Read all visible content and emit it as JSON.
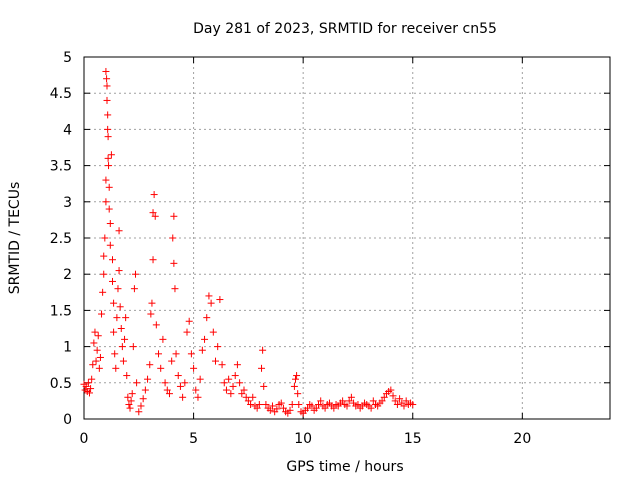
{
  "chart_data": {
    "type": "scatter",
    "title": "Day 281 of 2023, SRMTID for receiver cn55",
    "xlabel": "GPS time / hours",
    "ylabel": "SRMTID / TECUs",
    "xlim": [
      0,
      24
    ],
    "ylim": [
      0,
      5
    ],
    "x_ticks": [
      0,
      5,
      10,
      15,
      20
    ],
    "x_tick_labels": [
      "0",
      "5",
      "10",
      "15",
      "20"
    ],
    "y_ticks": [
      0,
      0.5,
      1,
      1.5,
      2,
      2.5,
      3,
      3.5,
      4,
      4.5,
      5
    ],
    "y_tick_labels": [
      "0",
      "0.5",
      "1",
      "1.5",
      "2",
      "2.5",
      "3",
      "3.5",
      "4",
      "4.5",
      "5"
    ],
    "grid": true,
    "marker": "+",
    "series": [
      {
        "name": "SRMTID",
        "color": "#ff0000",
        "points": [
          [
            0.0,
            0.48
          ],
          [
            0.05,
            0.4
          ],
          [
            0.1,
            0.45
          ],
          [
            0.15,
            0.38
          ],
          [
            0.2,
            0.5
          ],
          [
            0.25,
            0.36
          ],
          [
            0.3,
            0.42
          ],
          [
            0.35,
            0.55
          ],
          [
            0.4,
            0.75
          ],
          [
            0.45,
            1.05
          ],
          [
            0.5,
            1.2
          ],
          [
            0.55,
            0.8
          ],
          [
            0.6,
            0.95
          ],
          [
            0.65,
            1.15
          ],
          [
            0.7,
            0.7
          ],
          [
            0.75,
            0.85
          ],
          [
            0.8,
            1.45
          ],
          [
            0.85,
            1.75
          ],
          [
            0.9,
            2.0
          ],
          [
            0.9,
            2.25
          ],
          [
            0.95,
            2.5
          ],
          [
            1.0,
            3.0
          ],
          [
            1.0,
            3.3
          ],
          [
            1.0,
            4.8
          ],
          [
            1.03,
            4.7
          ],
          [
            1.05,
            4.6
          ],
          [
            1.05,
            4.4
          ],
          [
            1.08,
            4.2
          ],
          [
            1.08,
            4.0
          ],
          [
            1.1,
            3.9
          ],
          [
            1.1,
            3.6
          ],
          [
            1.12,
            3.5
          ],
          [
            1.15,
            3.2
          ],
          [
            1.15,
            2.9
          ],
          [
            1.2,
            2.7
          ],
          [
            1.2,
            2.4
          ],
          [
            1.25,
            3.65
          ],
          [
            1.3,
            2.2
          ],
          [
            1.3,
            1.9
          ],
          [
            1.35,
            1.6
          ],
          [
            1.35,
            1.2
          ],
          [
            1.4,
            0.9
          ],
          [
            1.45,
            0.7
          ],
          [
            1.5,
            1.4
          ],
          [
            1.55,
            1.8
          ],
          [
            1.6,
            2.05
          ],
          [
            1.6,
            2.6
          ],
          [
            1.65,
            1.55
          ],
          [
            1.7,
            1.25
          ],
          [
            1.75,
            1.0
          ],
          [
            1.8,
            0.8
          ],
          [
            1.85,
            1.1
          ],
          [
            1.9,
            1.4
          ],
          [
            1.95,
            0.6
          ],
          [
            2.0,
            0.3
          ],
          [
            2.05,
            0.2
          ],
          [
            2.1,
            0.15
          ],
          [
            2.15,
            0.25
          ],
          [
            2.2,
            0.35
          ],
          [
            2.25,
            1.0
          ],
          [
            2.3,
            1.8
          ],
          [
            2.35,
            2.0
          ],
          [
            2.4,
            0.5
          ],
          [
            2.5,
            0.1
          ],
          [
            2.6,
            0.18
          ],
          [
            2.7,
            0.28
          ],
          [
            2.8,
            0.4
          ],
          [
            2.9,
            0.55
          ],
          [
            3.0,
            0.75
          ],
          [
            3.05,
            1.45
          ],
          [
            3.1,
            1.6
          ],
          [
            3.15,
            2.2
          ],
          [
            3.15,
            2.85
          ],
          [
            3.2,
            3.1
          ],
          [
            3.25,
            2.8
          ],
          [
            3.3,
            1.3
          ],
          [
            3.4,
            0.9
          ],
          [
            3.5,
            0.7
          ],
          [
            3.6,
            1.1
          ],
          [
            3.7,
            0.5
          ],
          [
            3.8,
            0.4
          ],
          [
            3.9,
            0.35
          ],
          [
            4.0,
            0.8
          ],
          [
            4.05,
            2.5
          ],
          [
            4.1,
            2.8
          ],
          [
            4.1,
            2.15
          ],
          [
            4.15,
            1.8
          ],
          [
            4.2,
            0.9
          ],
          [
            4.3,
            0.6
          ],
          [
            4.4,
            0.45
          ],
          [
            4.5,
            0.3
          ],
          [
            4.6,
            0.5
          ],
          [
            4.7,
            1.2
          ],
          [
            4.8,
            1.35
          ],
          [
            4.9,
            0.9
          ],
          [
            5.0,
            0.7
          ],
          [
            5.1,
            0.4
          ],
          [
            5.2,
            0.3
          ],
          [
            5.3,
            0.55
          ],
          [
            5.4,
            0.95
          ],
          [
            5.5,
            1.1
          ],
          [
            5.6,
            1.4
          ],
          [
            5.7,
            1.7
          ],
          [
            5.8,
            1.6
          ],
          [
            5.9,
            1.2
          ],
          [
            6.0,
            0.8
          ],
          [
            6.1,
            1.0
          ],
          [
            6.2,
            1.65
          ],
          [
            6.3,
            0.75
          ],
          [
            6.4,
            0.5
          ],
          [
            6.5,
            0.4
          ],
          [
            6.6,
            0.55
          ],
          [
            6.7,
            0.35
          ],
          [
            6.8,
            0.45
          ],
          [
            6.9,
            0.6
          ],
          [
            7.0,
            0.75
          ],
          [
            7.1,
            0.5
          ],
          [
            7.2,
            0.35
          ],
          [
            7.3,
            0.4
          ],
          [
            7.4,
            0.3
          ],
          [
            7.5,
            0.25
          ],
          [
            7.6,
            0.2
          ],
          [
            7.7,
            0.3
          ],
          [
            7.8,
            0.18
          ],
          [
            7.9,
            0.15
          ],
          [
            8.0,
            0.2
          ],
          [
            8.1,
            0.7
          ],
          [
            8.15,
            0.95
          ],
          [
            8.2,
            0.45
          ],
          [
            8.3,
            0.2
          ],
          [
            8.4,
            0.15
          ],
          [
            8.5,
            0.12
          ],
          [
            8.6,
            0.18
          ],
          [
            8.7,
            0.1
          ],
          [
            8.8,
            0.14
          ],
          [
            8.9,
            0.2
          ],
          [
            9.0,
            0.22
          ],
          [
            9.1,
            0.15
          ],
          [
            9.2,
            0.1
          ],
          [
            9.3,
            0.08
          ],
          [
            9.4,
            0.12
          ],
          [
            9.5,
            0.2
          ],
          [
            9.6,
            0.45
          ],
          [
            9.65,
            0.55
          ],
          [
            9.7,
            0.6
          ],
          [
            9.75,
            0.35
          ],
          [
            9.8,
            0.2
          ],
          [
            9.9,
            0.1
          ],
          [
            10.0,
            0.08
          ],
          [
            10.1,
            0.12
          ],
          [
            10.2,
            0.15
          ],
          [
            10.3,
            0.2
          ],
          [
            10.4,
            0.18
          ],
          [
            10.5,
            0.12
          ],
          [
            10.6,
            0.15
          ],
          [
            10.7,
            0.2
          ],
          [
            10.8,
            0.25
          ],
          [
            10.9,
            0.18
          ],
          [
            11.0,
            0.15
          ],
          [
            11.1,
            0.2
          ],
          [
            11.2,
            0.22
          ],
          [
            11.3,
            0.18
          ],
          [
            11.4,
            0.15
          ],
          [
            11.5,
            0.2
          ],
          [
            11.6,
            0.18
          ],
          [
            11.7,
            0.22
          ],
          [
            11.8,
            0.25
          ],
          [
            11.9,
            0.2
          ],
          [
            12.0,
            0.18
          ],
          [
            12.1,
            0.25
          ],
          [
            12.2,
            0.3
          ],
          [
            12.3,
            0.22
          ],
          [
            12.4,
            0.18
          ],
          [
            12.5,
            0.2
          ],
          [
            12.6,
            0.15
          ],
          [
            12.7,
            0.18
          ],
          [
            12.8,
            0.22
          ],
          [
            12.9,
            0.2
          ],
          [
            13.0,
            0.18
          ],
          [
            13.1,
            0.15
          ],
          [
            13.2,
            0.25
          ],
          [
            13.3,
            0.2
          ],
          [
            13.4,
            0.18
          ],
          [
            13.5,
            0.22
          ],
          [
            13.6,
            0.25
          ],
          [
            13.7,
            0.3
          ],
          [
            13.8,
            0.35
          ],
          [
            13.9,
            0.38
          ],
          [
            14.0,
            0.4
          ],
          [
            14.1,
            0.32
          ],
          [
            14.2,
            0.25
          ],
          [
            14.3,
            0.2
          ],
          [
            14.4,
            0.28
          ],
          [
            14.5,
            0.22
          ],
          [
            14.6,
            0.18
          ],
          [
            14.7,
            0.25
          ],
          [
            14.8,
            0.2
          ],
          [
            14.9,
            0.22
          ],
          [
            15.0,
            0.2
          ]
        ]
      }
    ]
  }
}
